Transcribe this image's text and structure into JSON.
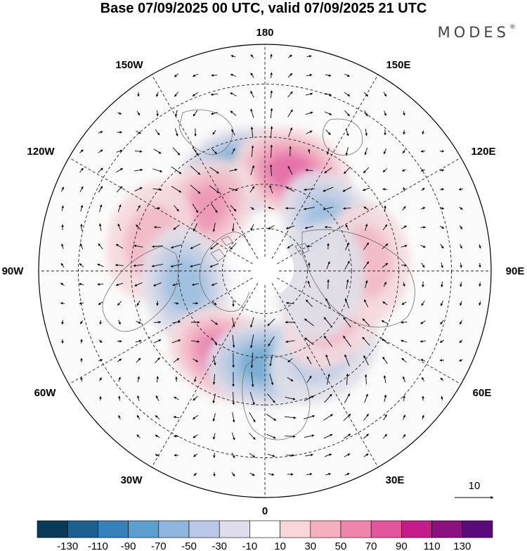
{
  "title": "Base 07/09/2025 00 UTC, valid 07/09/2025 21 UTC",
  "brand": "MODES",
  "brand_mark": "®",
  "map": {
    "projection": "north-polar-stereographic",
    "lon_labels": {
      "l180": "180",
      "l150e": "150E",
      "l120e": "120E",
      "l90e": "90E",
      "l60e": "60E",
      "l30e": "30E",
      "l0": "0",
      "l30w": "30W",
      "l60w": "60W",
      "l90w": "90W",
      "l120w": "120W",
      "l150w": "150W"
    },
    "vector_reference": "10",
    "anomaly_centers": [
      {
        "sign": "negative",
        "intensity": 90,
        "lon": -165,
        "lat": 55
      },
      {
        "sign": "positive",
        "intensity": 80,
        "lon": 165,
        "lat": 55
      },
      {
        "sign": "positive",
        "intensity": 60,
        "lon": -135,
        "lat": 60
      },
      {
        "sign": "negative",
        "intensity": 50,
        "lon": 125,
        "lat": 62
      },
      {
        "sign": "positive",
        "intensity": 30,
        "lon": -105,
        "lat": 50
      },
      {
        "sign": "negative",
        "intensity": 50,
        "lon": -80,
        "lat": 62
      },
      {
        "sign": "positive",
        "intensity": 70,
        "lon": -25,
        "lat": 58
      },
      {
        "sign": "negative",
        "intensity": 80,
        "lon": 0,
        "lat": 58
      },
      {
        "sign": "negative",
        "intensity": 40,
        "lon": 35,
        "lat": 55
      },
      {
        "sign": "positive",
        "intensity": 40,
        "lon": 58,
        "lat": 62
      },
      {
        "sign": "positive",
        "intensity": 30,
        "lon": 95,
        "lat": 55
      },
      {
        "sign": "negative",
        "intensity": 25,
        "lon": 80,
        "lat": 70
      }
    ]
  },
  "colorbar": {
    "colors": [
      "#0a3a5a",
      "#1d5f8e",
      "#3481bc",
      "#5c9fcf",
      "#8fb7dd",
      "#b9c8e6",
      "#dedde9",
      "#ffffff",
      "#f8d6da",
      "#f5afbf",
      "#f085ab",
      "#e3559c",
      "#c51c8a",
      "#8c1080",
      "#5a0a7a"
    ],
    "ticks": [
      "-130",
      "-110",
      "-90",
      "-70",
      "-50",
      "-30",
      "-10",
      "10",
      "30",
      "50",
      "70",
      "90",
      "110",
      "130"
    ]
  }
}
